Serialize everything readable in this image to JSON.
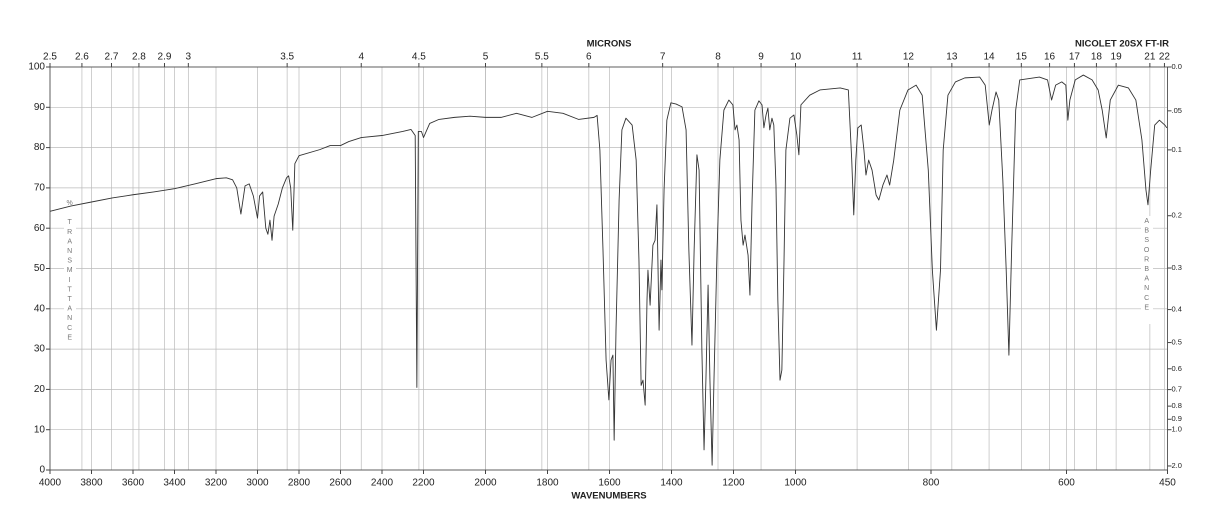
{
  "chart_data": {
    "type": "line",
    "title": "NICOLET 20SX FT-IR",
    "x_label": "WAVENUMBERS",
    "x2_label": "MICRONS",
    "y_label": "% TRANSMITTANCE",
    "y2_label": "ABSORBANCE",
    "color": "#333333",
    "grid": true,
    "xlim": [
      4000,
      450
    ],
    "xticks": [
      4000,
      3800,
      3600,
      3400,
      3200,
      3000,
      2800,
      2600,
      2400,
      2200,
      2000,
      1800,
      1600,
      1400,
      1200,
      1000,
      800,
      600,
      450
    ],
    "micron_ticks": [
      2.5,
      2.6,
      2.7,
      2.8,
      2.9,
      3,
      3.5,
      4,
      4.5,
      5,
      5.5,
      6,
      7,
      8,
      9,
      10,
      11,
      12,
      13,
      14,
      15,
      16,
      17,
      18,
      19,
      21,
      22
    ],
    "ylim": [
      0,
      100
    ],
    "yticks": [
      0,
      10,
      20,
      30,
      40,
      50,
      60,
      70,
      80,
      90,
      100
    ],
    "y2ticks": [
      {
        "value": 0,
        "label": "0.0"
      },
      {
        "value": 0.05,
        "label": ".05"
      },
      0.1,
      0.2,
      0.3,
      0.4,
      0.5,
      0.6,
      0.7,
      0.8,
      0.9,
      {
        "value": 1,
        "label": "1.0"
      },
      {
        "value": 2,
        "label": "2.0"
      }
    ],
    "x": [
      4000,
      3900,
      3800,
      3700,
      3600,
      3500,
      3400,
      3300,
      3200,
      3150,
      3120,
      3100,
      3080,
      3060,
      3040,
      3020,
      3000,
      2990,
      2975,
      2960,
      2950,
      2940,
      2930,
      2920,
      2900,
      2880,
      2860,
      2850,
      2840,
      2830,
      2820,
      2800,
      2700,
      2650,
      2600,
      2560,
      2500,
      2400,
      2300,
      2260,
      2240,
      2232,
      2225,
      2210,
      2200,
      2180,
      2150,
      2100,
      2050,
      2000,
      1950,
      1900,
      1850,
      1800,
      1750,
      1700,
      1650,
      1640,
      1631,
      1621,
      1611,
      1602,
      1595,
      1589,
      1585,
      1579,
      1569,
      1560,
      1547,
      1527,
      1514,
      1505,
      1498,
      1492,
      1485,
      1479,
      1476,
      1469,
      1460,
      1453,
      1447,
      1440,
      1434,
      1431,
      1424,
      1415,
      1402,
      1385,
      1366,
      1353,
      1344,
      1334,
      1327,
      1318,
      1311,
      1302,
      1295,
      1289,
      1282,
      1276,
      1269,
      1263,
      1253,
      1244,
      1231,
      1215,
      1202,
      1195,
      1189,
      1182,
      1176,
      1169,
      1163,
      1153,
      1147,
      1140,
      1131,
      1118,
      1108,
      1102,
      1095,
      1089,
      1083,
      1076,
      1070,
      1063,
      1057,
      1050,
      1044,
      1037,
      1031,
      1018,
      1005,
      998,
      995,
      992,
      979,
      964,
      934,
      922,
      917,
      914,
      911,
      908,
      903,
      899,
      896,
      892,
      887,
      881,
      877,
      871,
      865,
      861,
      855,
      846,
      834,
      822,
      813,
      804,
      798,
      792,
      786,
      782,
      775,
      764,
      750,
      728,
      720,
      714,
      710,
      704,
      700,
      694,
      689,
      685,
      681,
      675,
      669,
      640,
      628,
      622,
      616,
      607,
      601,
      598,
      595,
      587,
      575,
      562,
      553,
      547,
      541,
      535,
      523,
      508,
      497,
      488,
      482,
      479,
      475,
      469,
      462,
      454,
      451
    ],
    "values": [
      64.2,
      65.5,
      66.5,
      67.5,
      68.3,
      69,
      69.8,
      71,
      72.3,
      72.5,
      72,
      70,
      63.5,
      70.5,
      71,
      68,
      62.5,
      68,
      69,
      60,
      58.5,
      62,
      57,
      63,
      66,
      70,
      72.5,
      73,
      70,
      59.5,
      76,
      78,
      79.5,
      80.5,
      80.5,
      81.5,
      82.5,
      83,
      84,
      84.5,
      83,
      20.5,
      84,
      84,
      82.5,
      86,
      87,
      87.5,
      87.8,
      87.5,
      87.5,
      88.5,
      87.5,
      89,
      88.5,
      87,
      87.5,
      88,
      79.4,
      54.6,
      27.3,
      17.4,
      27.3,
      28.5,
      7.4,
      34.7,
      67,
      84.4,
      87.3,
      85.6,
      76.9,
      52.1,
      21,
      22.3,
      16.1,
      42.2,
      49.6,
      40.9,
      55.8,
      57,
      65.8,
      34.7,
      52.1,
      44.7,
      69.5,
      86.8,
      91.1,
      90.8,
      90.1,
      84.4,
      54.6,
      31,
      54.6,
      78.2,
      74.4,
      29.8,
      5,
      22.3,
      45.9,
      22.3,
      1.2,
      22.3,
      54.6,
      76.9,
      89.3,
      91.8,
      90.6,
      84.4,
      85.6,
      81.9,
      62,
      55.8,
      58.3,
      53.3,
      43.4,
      67,
      89.3,
      91.6,
      90.6,
      84.9,
      88.1,
      89.8,
      84.4,
      87.3,
      85.6,
      70.7,
      42.2,
      22.3,
      24.8,
      52.1,
      79.4,
      87.3,
      88.1,
      83.1,
      78.2,
      90.6,
      93,
      94.3,
      94.8,
      94.3,
      76.9,
      63.3,
      76.9,
      84.9,
      85.6,
      79.4,
      73.2,
      76.9,
      74.4,
      68.2,
      67,
      70.7,
      73.2,
      70.7,
      76.9,
      89.3,
      94.3,
      95.5,
      93,
      74.4,
      49.6,
      34.7,
      49.6,
      79.4,
      93,
      96.3,
      97.3,
      97.5,
      95.5,
      85.6,
      89.3,
      93.8,
      91.8,
      72,
      49.6,
      28.5,
      54.6,
      89.3,
      96.8,
      97.5,
      96.8,
      91.8,
      95.5,
      96.3,
      95.5,
      86.8,
      91.8,
      96.8,
      98,
      96.8,
      94.3,
      89.3,
      82.4,
      91.8,
      95.5,
      94.8,
      91.8,
      81.9,
      69.5,
      65.8,
      74.4,
      85.6,
      86.8,
      85.6,
      84.9
    ]
  }
}
